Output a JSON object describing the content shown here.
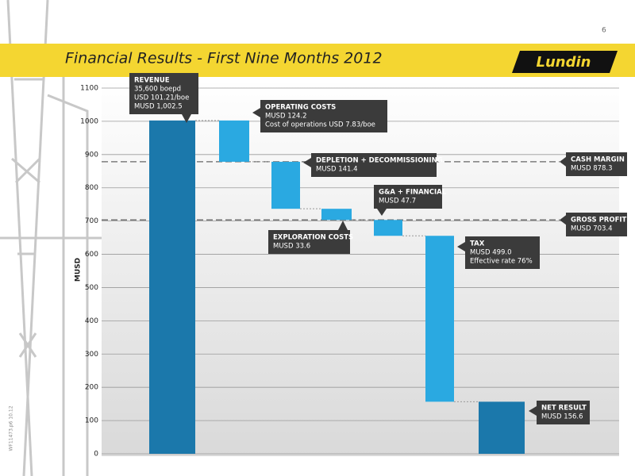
{
  "page_number": "6",
  "logo": "Lundin",
  "side_note": "WF11473.p6 10.12",
  "chart_data": {
    "type": "waterfall",
    "title": "Financial Results - First Nine Months 2012",
    "ylabel": "MUSD",
    "categories": [
      null,
      null,
      null,
      null,
      null,
      null,
      null
    ],
    "values": [
      1002.5,
      -124.2,
      -141.4,
      -33.6,
      -47.7,
      -499.0,
      156.6
    ],
    "measures": [
      "absolute",
      "relative",
      "relative",
      "relative",
      "relative",
      "relative",
      "total"
    ],
    "colors": {
      "total": "#1b78ab",
      "relative": "#2aa9e1"
    },
    "ylim": [
      0,
      1100
    ],
    "yticks": [
      0,
      100,
      200,
      300,
      400,
      500,
      600,
      700,
      800,
      900,
      1000,
      1100
    ],
    "grid": true,
    "annotations": [
      {
        "lines": [
          "REVENUE",
          "35,600 boepd",
          "USD 101.21/boe",
          "MUSD 1,002.5"
        ]
      },
      {
        "lines": [
          "OPERATING COSTS",
          "MUSD 124.2",
          "Cost of operations USD 7.83/boe"
        ]
      },
      {
        "lines": [
          "DEPLETION + DECOMMISSIONING",
          "MUSD  141.4"
        ]
      },
      {
        "lines": [
          "EXPLORATION COSTS",
          "MUSD 33.6"
        ]
      },
      {
        "lines": [
          "G&A + FINANCIAL",
          "MUSD 47.7"
        ]
      },
      {
        "lines": [
          "TAX",
          "MUSD 499.0",
          "Effective rate 76%"
        ]
      },
      {
        "lines": [
          "NET RESULT",
          "MUSD 156.6"
        ]
      }
    ],
    "reference_lines": [
      {
        "value": 878.3,
        "lines": [
          "CASH MARGIN",
          "MUSD  878.3"
        ]
      },
      {
        "value": 703.4,
        "lines": [
          "GROSS PROFIT",
          "MUSD 703.4"
        ]
      }
    ]
  }
}
